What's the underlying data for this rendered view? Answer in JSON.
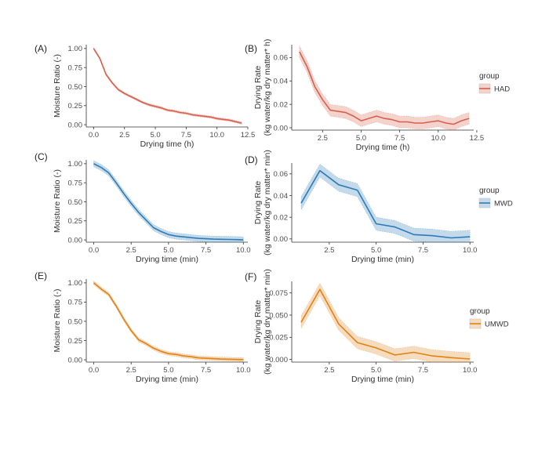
{
  "chart_data": [
    {
      "panel": "(A)",
      "type": "line",
      "xlabel": "Drying time (h)",
      "ylabel": "Moisture Ratio (-)",
      "xlim": [
        -0.6,
        12.5
      ],
      "ylim": [
        -0.03,
        1.05
      ],
      "xticks": [
        0,
        2.5,
        5,
        7.5,
        10,
        12.5
      ],
      "xtick_labels": [
        "0.0",
        "2.5",
        "5.0",
        "7.5",
        "10.0",
        "12.5"
      ],
      "yticks": [
        0,
        0.25,
        0.5,
        0.75,
        1
      ],
      "ytick_labels": [
        "0.00",
        "0.25",
        "0.50",
        "0.75",
        "1.00"
      ],
      "color": "#d6604d",
      "series": [
        {
          "x": [
            0,
            0.5,
            1,
            1.5,
            2,
            2.5,
            3,
            3.5,
            4,
            4.5,
            5,
            5.5,
            6,
            6.5,
            7,
            7.5,
            8,
            8.5,
            9,
            9.5,
            10,
            10.5,
            11,
            11.5,
            12
          ],
          "y": [
            1.0,
            0.87,
            0.66,
            0.55,
            0.46,
            0.41,
            0.37,
            0.33,
            0.29,
            0.26,
            0.24,
            0.22,
            0.19,
            0.18,
            0.16,
            0.15,
            0.13,
            0.12,
            0.11,
            0.1,
            0.08,
            0.07,
            0.06,
            0.04,
            0.02
          ],
          "band": 0.015
        }
      ]
    },
    {
      "panel": "(B)",
      "type": "line",
      "xlabel": "Drying time (h)",
      "ylabel": "Drying Rate (kg water/kg dry matter* h)",
      "xlim": [
        0.5,
        12.3
      ],
      "ylim": [
        -0.002,
        0.071
      ],
      "xticks": [
        2.5,
        5,
        7.5,
        10,
        12.5
      ],
      "xtick_labels": [
        "2.5",
        "5.0",
        "7.5",
        "10.0",
        "12.5"
      ],
      "yticks": [
        0,
        0.02,
        0.04,
        0.06
      ],
      "ytick_labels": [
        "0.00",
        "0.02",
        "0.04",
        "0.06"
      ],
      "color": "#d6604d",
      "legend": {
        "title": "group",
        "label": "HAD",
        "position": "right"
      },
      "series": [
        {
          "x": [
            1,
            1.5,
            2,
            2.5,
            3,
            3.5,
            4,
            4.5,
            5,
            5.5,
            6,
            6.5,
            7,
            7.5,
            8,
            8.5,
            9,
            9.5,
            10,
            10.5,
            11,
            11.5,
            12
          ],
          "y": [
            0.065,
            0.052,
            0.035,
            0.024,
            0.015,
            0.014,
            0.013,
            0.01,
            0.006,
            0.008,
            0.01,
            0.008,
            0.007,
            0.005,
            0.005,
            0.004,
            0.004,
            0.005,
            0.006,
            0.004,
            0.003,
            0.006,
            0.008
          ],
          "band": 0.005
        }
      ]
    },
    {
      "panel": "(C)",
      "type": "line",
      "xlabel": "Drying time (min)",
      "ylabel": "Moisture Ratio (-)",
      "xlim": [
        -0.5,
        10.3
      ],
      "ylim": [
        -0.03,
        1.05
      ],
      "xticks": [
        0,
        2.5,
        5,
        7.5,
        10
      ],
      "xtick_labels": [
        "0.0",
        "2.5",
        "5.0",
        "7.5",
        "10.0"
      ],
      "yticks": [
        0,
        0.25,
        0.5,
        0.75,
        1
      ],
      "ytick_labels": [
        "0.00",
        "0.25",
        "0.50",
        "0.75",
        "1.00"
      ],
      "color": "#2c7bb6",
      "series": [
        {
          "x": [
            0,
            0.5,
            1,
            1.5,
            2,
            2.5,
            3,
            3.5,
            4,
            4.5,
            5,
            5.5,
            6,
            6.5,
            7,
            7.5,
            8,
            8.5,
            9,
            9.5,
            10
          ],
          "y": [
            1.0,
            0.95,
            0.88,
            0.75,
            0.61,
            0.48,
            0.36,
            0.26,
            0.16,
            0.11,
            0.07,
            0.05,
            0.04,
            0.03,
            0.02,
            0.015,
            0.01,
            0.008,
            0.006,
            0.004,
            0.0
          ],
          "band": 0.04
        }
      ]
    },
    {
      "panel": "(D)",
      "type": "line",
      "xlabel": "Drying time (min)",
      "ylabel": "Drying Rate (kg water/kg dry matter* min)",
      "xlim": [
        0.5,
        10.2
      ],
      "ylim": [
        -0.003,
        0.07
      ],
      "xticks": [
        2.5,
        5,
        7.5,
        10
      ],
      "xtick_labels": [
        "2.5",
        "5.0",
        "7.5",
        "10.0"
      ],
      "yticks": [
        0,
        0.02,
        0.04,
        0.06
      ],
      "ytick_labels": [
        "0.00",
        "0.02",
        "0.04",
        "0.06"
      ],
      "color": "#2c7bb6",
      "legend": {
        "title": "group",
        "label": "MWD",
        "position": "right"
      },
      "series": [
        {
          "x": [
            1,
            2,
            3,
            4,
            5,
            6,
            7,
            8,
            9,
            10
          ],
          "y": [
            0.033,
            0.063,
            0.05,
            0.045,
            0.014,
            0.011,
            0.004,
            0.003,
            0.001,
            0.002
          ],
          "band": 0.006
        }
      ]
    },
    {
      "panel": "(E)",
      "type": "line",
      "xlabel": "Drying time (min)",
      "ylabel": "Moisture Ratio (-)",
      "xlim": [
        -0.5,
        10.3
      ],
      "ylim": [
        -0.03,
        1.05
      ],
      "xticks": [
        0,
        2.5,
        5,
        7.5,
        10
      ],
      "xtick_labels": [
        "0.0",
        "2.5",
        "5.0",
        "7.5",
        "10.0"
      ],
      "yticks": [
        0,
        0.25,
        0.5,
        0.75,
        1
      ],
      "ytick_labels": [
        "0.00",
        "0.25",
        "0.50",
        "0.75",
        "1.00"
      ],
      "color": "#e08214",
      "series": [
        {
          "x": [
            0,
            0.5,
            1,
            1.5,
            2,
            2.5,
            3,
            3.5,
            4,
            4.5,
            5,
            5.5,
            6,
            6.5,
            7,
            7.5,
            8,
            8.5,
            9,
            9.5,
            10
          ],
          "y": [
            1.0,
            0.92,
            0.85,
            0.7,
            0.53,
            0.38,
            0.26,
            0.21,
            0.15,
            0.11,
            0.08,
            0.07,
            0.05,
            0.04,
            0.025,
            0.02,
            0.015,
            0.01,
            0.008,
            0.005,
            0.003
          ],
          "band": 0.025
        }
      ]
    },
    {
      "panel": "(F)",
      "type": "line",
      "xlabel": "Drying time (min)",
      "ylabel": "Drying Rate (kg water/kg dry matter* min)",
      "xlim": [
        0.5,
        10.2
      ],
      "ylim": [
        -0.003,
        0.088
      ],
      "xticks": [
        2.5,
        5,
        7.5,
        10
      ],
      "xtick_labels": [
        "2.5",
        "5.0",
        "7.5",
        "10.0"
      ],
      "yticks": [
        0,
        0.025,
        0.05,
        0.075
      ],
      "ytick_labels": [
        "0.000",
        "0.025",
        "0.050",
        "0.075"
      ],
      "color": "#e08214",
      "legend": {
        "title": "group",
        "label": "UMWD",
        "position": "right"
      },
      "series": [
        {
          "x": [
            1,
            2,
            3,
            4,
            5,
            6,
            7,
            8,
            9,
            10
          ],
          "y": [
            0.042,
            0.079,
            0.04,
            0.019,
            0.013,
            0.005,
            0.008,
            0.004,
            0.002,
            0.0005
          ],
          "band": 0.007
        }
      ]
    }
  ]
}
